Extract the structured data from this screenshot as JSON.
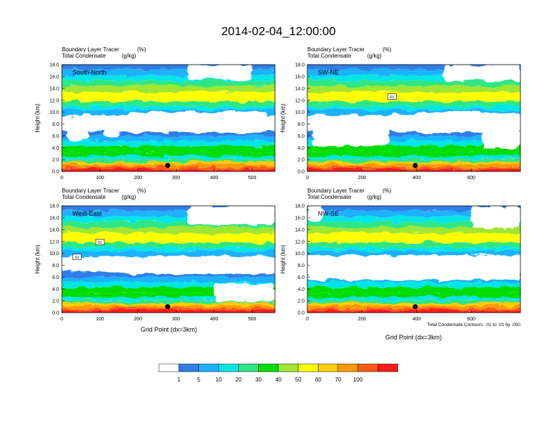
{
  "figure": {
    "title": "2014-02-04_12:00:00",
    "panel_var_line1": "Boundary Layer Tracer",
    "panel_unit_line1": "(%)",
    "panel_var_line2": "Total Condensate",
    "panel_unit_line2": "(g/kg)",
    "ylabel": "Height (km)",
    "xlabel": "Grid Point (dx=3km)",
    "contour_note": "Total Condensate Contours: .01 to .01 by .000"
  },
  "colorbar": {
    "colors": [
      "#ffffff",
      "#2e7fe8",
      "#1bb2ff",
      "#00e6e6",
      "#2ee684",
      "#00dd00",
      "#a0e632",
      "#ffff00",
      "#ffcc00",
      "#ff9900",
      "#ff5a14",
      "#ff1a1a"
    ],
    "labels": [
      "1",
      "5",
      "10",
      "20",
      "30",
      "40",
      "50",
      "60",
      "70",
      "100"
    ]
  },
  "chart_data": [
    {
      "type": "heatmap",
      "panel_label": "South-North",
      "xlim": [
        0,
        560
      ],
      "ylim": [
        0,
        18
      ],
      "xticks": [
        0,
        100,
        200,
        300,
        400,
        500
      ],
      "yticks": [
        "0.0",
        "2.0",
        "4.0",
        "6.0",
        "8.0",
        "10.0",
        "12.0",
        "14.0",
        "16.0",
        "18.0"
      ],
      "marker": {
        "x": 278,
        "y": 1.0
      },
      "mask_regions": [
        {
          "x": [
            170,
            540
          ],
          "y": [
            6.5,
            10.0
          ]
        },
        {
          "x": [
            15,
            70
          ],
          "y": [
            5.2,
            7.3
          ]
        },
        {
          "x": [
            110,
            150
          ],
          "y": [
            5.8,
            7.0
          ]
        },
        {
          "x": [
            330,
            500
          ],
          "y": [
            15.5,
            18.0
          ]
        }
      ],
      "contour_boxes": []
    },
    {
      "type": "heatmap",
      "panel_label": "SW-NE",
      "xlim": [
        0,
        780
      ],
      "ylim": [
        0,
        18
      ],
      "xticks": [
        0,
        200,
        400,
        600
      ],
      "yticks": [
        "0.0",
        "2.0",
        "4.0",
        "6.0",
        "8.0",
        "10.0",
        "12.0",
        "14.0",
        "16.0",
        "18.0"
      ],
      "marker": {
        "x": 395,
        "y": 1.0
      },
      "mask_regions": [
        {
          "x": [
            390,
            780
          ],
          "y": [
            6.5,
            10.0
          ]
        },
        {
          "x": [
            20,
            300
          ],
          "y": [
            4.3,
            7.8
          ]
        },
        {
          "x": [
            640,
            780
          ],
          "y": [
            4.0,
            6.8
          ]
        },
        {
          "x": [
            500,
            780
          ],
          "y": [
            15.2,
            18.0
          ]
        }
      ],
      "contour_boxes": [
        {
          "x": 310,
          "y": 12.6,
          "label": "01"
        }
      ]
    },
    {
      "type": "heatmap",
      "panel_label": "West-East",
      "xlim": [
        0,
        560
      ],
      "ylim": [
        0,
        18
      ],
      "xticks": [
        0,
        100,
        200,
        300,
        400,
        500
      ],
      "yticks": [
        "0.0",
        "2.0",
        "4.0",
        "6.0",
        "8.0",
        "10.0",
        "12.0",
        "14.0",
        "16.0",
        "18.0"
      ],
      "marker": {
        "x": 278,
        "y": 1.0
      },
      "mask_regions": [
        {
          "x": [
            175,
            560
          ],
          "y": [
            6.5,
            9.5
          ]
        },
        {
          "x": [
            400,
            560
          ],
          "y": [
            1.8,
            5.0
          ]
        },
        {
          "x": [
            330,
            560
          ],
          "y": [
            14.8,
            18.0
          ]
        }
      ],
      "contour_boxes": [
        {
          "x": 100,
          "y": 11.9,
          "label": "01"
        },
        {
          "x": 40,
          "y": 9.4,
          "label": "01"
        }
      ]
    },
    {
      "type": "heatmap",
      "panel_label": "NW-SE",
      "xlim": [
        0,
        780
      ],
      "ylim": [
        0,
        18
      ],
      "xticks": [
        0,
        200,
        400,
        600
      ],
      "yticks": [
        "0.0",
        "2.0",
        "4.0",
        "6.0",
        "8.0",
        "10.0",
        "12.0",
        "14.0",
        "16.0",
        "18.0"
      ],
      "marker": {
        "x": 395,
        "y": 1.0
      },
      "mask_regions": [
        {
          "x": [
            0,
            780
          ],
          "y": [
            5.5,
            9.7
          ]
        },
        {
          "x": [
            0,
            60
          ],
          "y": [
            15.5,
            18.0
          ]
        },
        {
          "x": [
            600,
            780
          ],
          "y": [
            14.2,
            18.0
          ]
        }
      ],
      "contour_boxes": []
    }
  ]
}
